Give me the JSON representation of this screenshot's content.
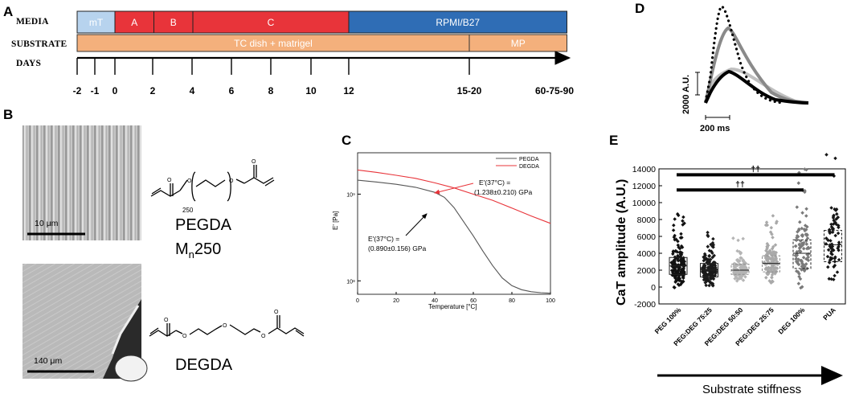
{
  "panels": {
    "a": "A",
    "b": "B",
    "c": "C",
    "d": "D",
    "e": "E"
  },
  "panel_a": {
    "row_labels": [
      "MEDIA",
      "SUBSTRATE",
      "DAYS"
    ],
    "media": [
      {
        "label": "mT",
        "color": "#b7d3ee",
        "start": -2,
        "end": 0
      },
      {
        "label": "A",
        "color": "#e8343a",
        "start": 0,
        "end": 2
      },
      {
        "label": "B",
        "color": "#e8343a",
        "start": 2,
        "end": 4
      },
      {
        "label": "C",
        "color": "#e8343a",
        "start": 4,
        "end": 12
      },
      {
        "label": "RPMI/B27",
        "color": "#2f6db5",
        "start": 12,
        "end": 30
      }
    ],
    "substrate": [
      {
        "label": "TC dish + matrigel",
        "color": "#f4b07c",
        "start": -2,
        "end": 15
      },
      {
        "label": "MP",
        "color": "#f4b07c",
        "start": 15,
        "end": 30
      }
    ],
    "days": [
      "-2",
      "-1",
      "0",
      "2",
      "4",
      "6",
      "8",
      "10",
      "12",
      "15-20",
      "60-75-90"
    ]
  },
  "panel_b": {
    "scale_top": "10 μm",
    "scale_bottom": "140 μm",
    "pegda_label": "PEGDA",
    "pegda_mn": "M",
    "pegda_mn_sub": "n",
    "pegda_mn_val": "250",
    "pegda_repeat": "250",
    "degda_label": "DEGDA"
  },
  "panel_c": {
    "chart_data": {
      "type": "line",
      "xlabel": "Temperature [°C]",
      "ylabel": "E' [Pa]",
      "xlim": [
        0,
        100
      ],
      "yscale": "log",
      "ylim": [
        70000000,
        3000000000
      ],
      "xticks": [
        "0",
        "20",
        "40",
        "60",
        "80",
        "100"
      ],
      "yticks": [
        "10⁹",
        "10⁸"
      ],
      "legend_position": "top-right",
      "series": [
        {
          "name": "PEGDA",
          "color": "#555555",
          "x": [
            0,
            10,
            20,
            30,
            40,
            45,
            50,
            55,
            60,
            65,
            70,
            75,
            80,
            85,
            90,
            95,
            100
          ],
          "y": [
            1450000000.0,
            1380000000.0,
            1300000000.0,
            1200000000.0,
            1050000000.0,
            920000000.0,
            700000000.0,
            480000000.0,
            330000000.0,
            220000000.0,
            150000000.0,
            108000000.0,
            88000000.0,
            79000000.0,
            75000000.0,
            73000000.0,
            72000000.0
          ]
        },
        {
          "name": "DEGDA",
          "color": "#e8343a",
          "x": [
            0,
            10,
            20,
            30,
            40,
            50,
            60,
            70,
            80,
            90,
            100
          ],
          "y": [
            1900000000.0,
            1780000000.0,
            1650000000.0,
            1520000000.0,
            1350000000.0,
            1180000000.0,
            1000000000.0,
            850000000.0,
            690000000.0,
            560000000.0,
            460000000.0
          ]
        }
      ]
    },
    "ann_degda_1": "E'(37°C) =",
    "ann_degda_2": "(1.238±0.210) GPa",
    "ann_pegda_1": "E'(37°C) =",
    "ann_pegda_2": "(0.890±0.156) GPa"
  },
  "panel_d": {
    "ylabel": "2000 A.U.",
    "xlabel": "200 ms"
  },
  "panel_e": {
    "chart_data": {
      "type": "scatter",
      "ylabel": "CaT amplitude (A.U.)",
      "ylim": [
        -2000,
        14000
      ],
      "yticks": [
        "-2000",
        "0",
        "2000",
        "4000",
        "6000",
        "8000",
        "10000",
        "12000",
        "14000"
      ],
      "categories": [
        "PEG 100%",
        "PEG:DEG 75:25",
        "PEG:DEG 50:50",
        "PEG:DEG 25:75",
        "DEG 100%",
        "PUA"
      ],
      "box": [
        {
          "q1": 1500,
          "median": 2500,
          "q3": 3500,
          "mean": 2700
        },
        {
          "q1": 1200,
          "median": 2000,
          "q3": 2800,
          "mean": 2200
        },
        {
          "q1": 1500,
          "median": 2000,
          "q3": 2700,
          "mean": 2100
        },
        {
          "q1": 1800,
          "median": 2800,
          "q3": 3700,
          "mean": 2900
        },
        {
          "q1": 2200,
          "median": 4000,
          "q3": 5600,
          "mean": 4200
        },
        {
          "q1": 3000,
          "median": 5000,
          "q3": 6700,
          "mean": 5200
        }
      ],
      "colors": [
        "#111111",
        "#1a1a1a",
        "#b5b5b5",
        "#a9a9a9",
        "#7a7a7a",
        "#161616"
      ],
      "significance": [
        {
          "from": "PEG 100%",
          "to": "DEG 100%",
          "label": "††",
          "y": 11500
        },
        {
          "from": "PEG 100%",
          "to": "PUA",
          "label": "††",
          "y": 13300
        }
      ]
    },
    "arrow_label": "Substrate stiffness"
  }
}
